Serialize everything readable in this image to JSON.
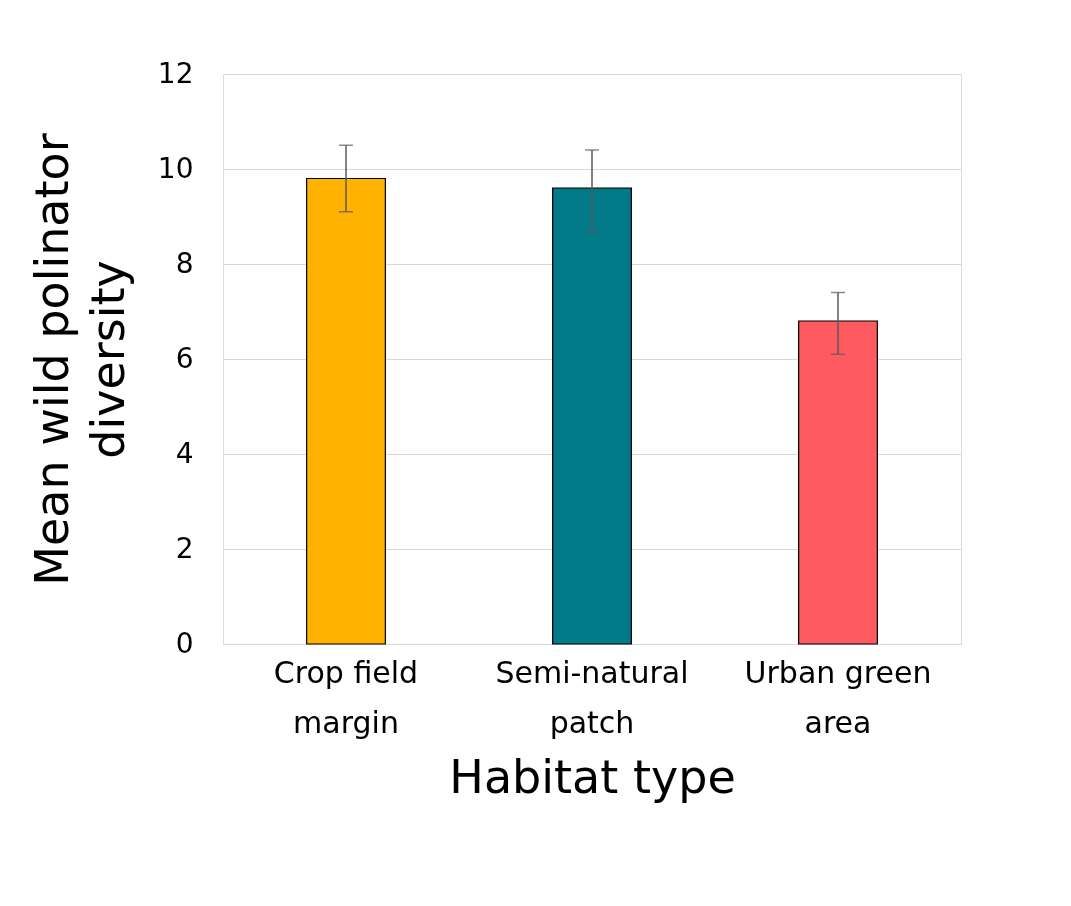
{
  "chart_data": {
    "type": "bar",
    "xlabel": "Habitat type",
    "ylabel": "Mean wild polinator diversity",
    "categories": [
      "Crop field margin",
      "Semi-natural patch",
      "Urban green area"
    ],
    "values": [
      9.8,
      9.6,
      6.8
    ],
    "colors": [
      "#ffb300",
      "#007a87",
      "#ff5a5f"
    ],
    "errors": [
      [
        9.1,
        10.5
      ],
      [
        8.7,
        10.4
      ],
      [
        6.1,
        7.4
      ]
    ],
    "ylim": [
      0,
      12
    ],
    "yticks": [
      0,
      2,
      4,
      6,
      8,
      10,
      12
    ],
    "grid": "y"
  }
}
